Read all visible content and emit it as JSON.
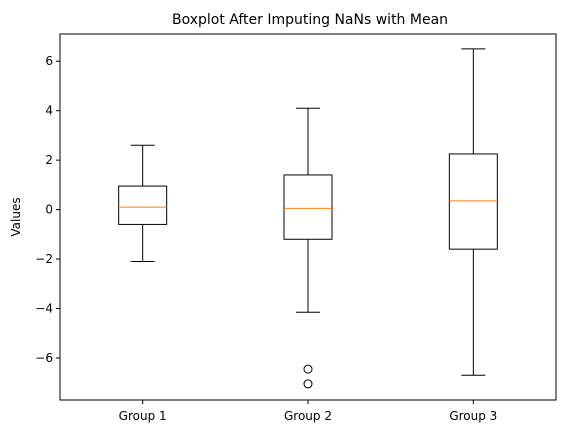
{
  "chart_data": {
    "type": "boxplot",
    "title": "Boxplot After Imputing NaNs with Mean",
    "xlabel": "",
    "ylabel": "Values",
    "categories": [
      "Group 1",
      "Group 2",
      "Group 3"
    ],
    "ylim": [
      -7.7,
      7.1
    ],
    "yticks": [
      6,
      4,
      2,
      0,
      -2,
      -4,
      -6
    ],
    "grid": false,
    "legend": "none",
    "median_color": "#ff7f0e",
    "series": [
      {
        "category": "Group 1",
        "whisker_low": -2.1,
        "q1": -0.6,
        "median": 0.1,
        "q3": 0.95,
        "whisker_high": 2.6,
        "outliers": []
      },
      {
        "category": "Group 2",
        "whisker_low": -4.15,
        "q1": -1.2,
        "median": 0.05,
        "q3": 1.4,
        "whisker_high": 4.1,
        "outliers": [
          -6.45,
          -7.05
        ]
      },
      {
        "category": "Group 3",
        "whisker_low": -6.7,
        "q1": -1.6,
        "median": 0.35,
        "q3": 2.25,
        "whisker_high": 6.5,
        "outliers": []
      }
    ]
  }
}
